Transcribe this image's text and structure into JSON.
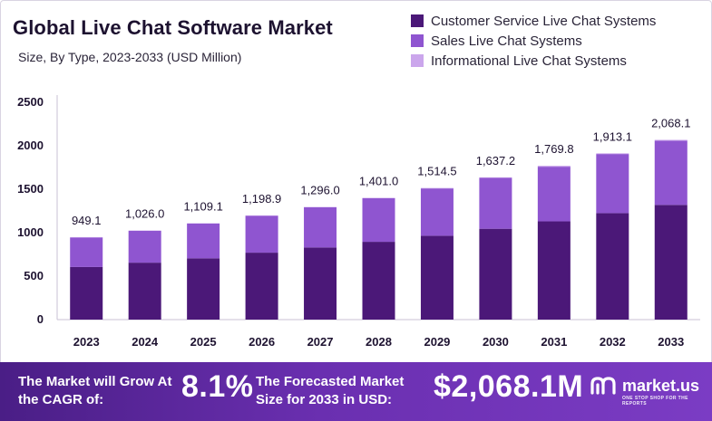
{
  "header": {
    "title": "Global Live Chat Software Market",
    "subtitle": "Size, By Type, 2023-2033 (USD Million)"
  },
  "colors": {
    "customer_service": "#4b1878",
    "sales": "#8f55d0",
    "informational": "#cba6ec",
    "footer_start": "#4a1e86",
    "footer_end": "#7b3cc4"
  },
  "chart_data": {
    "type": "bar",
    "stacked": true,
    "title": "Global Live Chat Software Market",
    "subtitle": "Size, By Type, 2023-2033 (USD Million)",
    "xlabel": "",
    "ylabel": "",
    "ylim": [
      0,
      2500
    ],
    "yticks": [
      0,
      500,
      1000,
      1500,
      2000,
      2500
    ],
    "grid": false,
    "legend_position": "top-right",
    "categories": [
      "2023",
      "2024",
      "2025",
      "2026",
      "2027",
      "2028",
      "2029",
      "2030",
      "2031",
      "2032",
      "2033"
    ],
    "totals": [
      949.1,
      1026.0,
      1109.1,
      1198.9,
      1296.0,
      1401.0,
      1514.5,
      1637.2,
      1769.8,
      1913.1,
      2068.1
    ],
    "total_labels": [
      "949.1",
      "1,026.0",
      "1,109.1",
      "1,198.9",
      "1,296.0",
      "1,401.0",
      "1,514.5",
      "1,637.2",
      "1,769.8",
      "1,913.1",
      "2,068.1"
    ],
    "series": [
      {
        "name": "Customer Service Live Chat Systems",
        "color": "#4b1878",
        "values": [
          605,
          655,
          705,
          770,
          830,
          895,
          965,
          1045,
          1130,
          1225,
          1320
        ]
      },
      {
        "name": "Sales Live Chat Systems",
        "color": "#8f55d0",
        "values": [
          340,
          367,
          400,
          425,
          462,
          501,
          544,
          587,
          629,
          680,
          738
        ]
      },
      {
        "name": "Informational Live Chat Systems",
        "color": "#cba6ec",
        "values": [
          4.1,
          4.0,
          4.1,
          3.9,
          4.0,
          5.0,
          5.5,
          5.2,
          10.8,
          8.1,
          10.1
        ]
      }
    ]
  },
  "footer": {
    "grow_text": "The Market will Grow At the CAGR of:",
    "cagr": "8.1%",
    "forecast_text": "The Forecasted Market Size for 2033 in USD:",
    "forecast_value": "$2,068.1M",
    "brand_name": "market.us",
    "brand_tagline": "ONE STOP SHOP FOR THE REPORTS"
  }
}
